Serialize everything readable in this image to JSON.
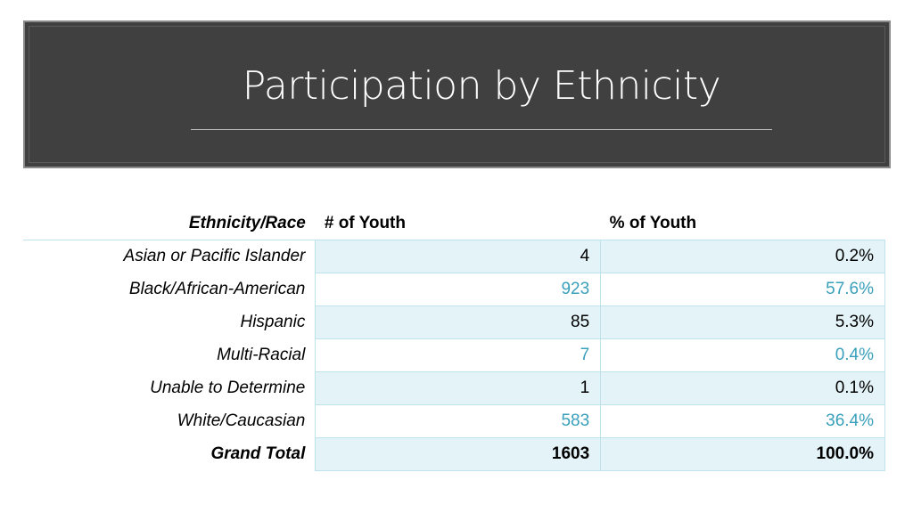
{
  "slide": {
    "title": "Participation by Ethnicity"
  },
  "table": {
    "headers": [
      "Ethnicity/Race",
      "# of Youth",
      "% of Youth"
    ],
    "rows": [
      {
        "label": "Asian or Pacific Islander",
        "count": "4",
        "pct": "0.2%"
      },
      {
        "label": "Black/African-American",
        "count": "923",
        "pct": "57.6%"
      },
      {
        "label": "Hispanic",
        "count": "85",
        "pct": "5.3%"
      },
      {
        "label": "Multi-Racial",
        "count": "7",
        "pct": "0.4%"
      },
      {
        "label": "Unable to Determine",
        "count": "1",
        "pct": "0.1%"
      },
      {
        "label": "White/Caucasian",
        "count": "583",
        "pct": "36.4%"
      }
    ],
    "total": {
      "label": "Grand Total",
      "count": "1603",
      "pct": "100.0%"
    }
  },
  "colors": {
    "title_bg": "#404040",
    "band_light": "#e3f3f8",
    "accent_text": "#3aa0bb"
  }
}
